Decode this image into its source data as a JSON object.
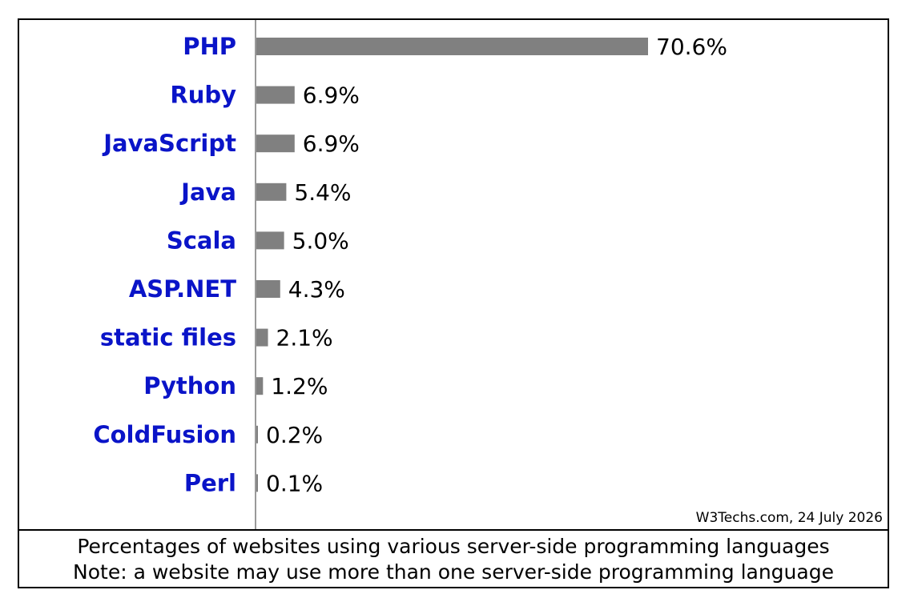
{
  "chart_data": {
    "type": "bar",
    "orientation": "horizontal",
    "categories": [
      "PHP",
      "Ruby",
      "JavaScript",
      "Java",
      "Scala",
      "ASP.NET",
      "static files",
      "Python",
      "ColdFusion",
      "Perl"
    ],
    "values": [
      70.6,
      6.9,
      6.9,
      5.4,
      5.0,
      4.3,
      2.1,
      1.2,
      0.2,
      0.1
    ],
    "value_labels": [
      "70.6%",
      "6.9%",
      "6.9%",
      "5.4%",
      "5.0%",
      "4.3%",
      "2.1%",
      "1.2%",
      "0.2%",
      "0.1%"
    ],
    "xlim": [
      0,
      100
    ],
    "grid": false,
    "bar_color": "#808080",
    "label_color": "#0a14c8"
  },
  "source": "W3Techs.com, 24 July 2026",
  "caption": {
    "line1": "Percentages of websites using various server-side programming languages",
    "line2": "Note: a website may use more than one server-side programming language"
  }
}
